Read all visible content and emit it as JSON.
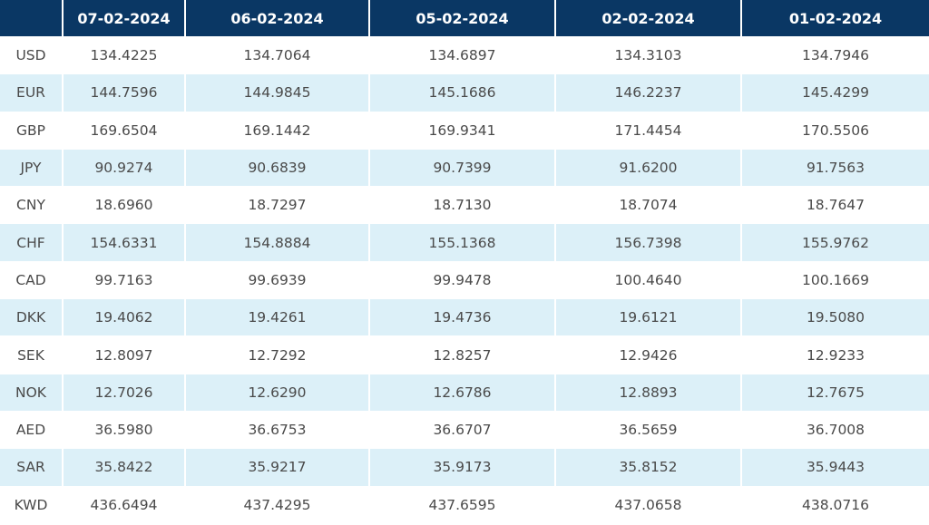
{
  "table": {
    "headers": [
      "",
      "07-02-2024",
      "06-02-2024",
      "05-02-2024",
      "02-02-2024",
      "01-02-2024"
    ],
    "rows": [
      {
        "currency": "USD",
        "values": [
          "134.4225",
          "134.7064",
          "134.6897",
          "134.3103",
          "134.7946"
        ]
      },
      {
        "currency": "EUR",
        "values": [
          "144.7596",
          "144.9845",
          "145.1686",
          "146.2237",
          "145.4299"
        ]
      },
      {
        "currency": "GBP",
        "values": [
          "169.6504",
          "169.1442",
          "169.9341",
          "171.4454",
          "170.5506"
        ]
      },
      {
        "currency": "JPY",
        "values": [
          "90.9274",
          "90.6839",
          "90.7399",
          "91.6200",
          "91.7563"
        ]
      },
      {
        "currency": "CNY",
        "values": [
          "18.6960",
          "18.7297",
          "18.7130",
          "18.7074",
          "18.7647"
        ]
      },
      {
        "currency": "CHF",
        "values": [
          "154.6331",
          "154.8884",
          "155.1368",
          "156.7398",
          "155.9762"
        ]
      },
      {
        "currency": "CAD",
        "values": [
          "99.7163",
          "99.6939",
          "99.9478",
          "100.4640",
          "100.1669"
        ]
      },
      {
        "currency": "DKK",
        "values": [
          "19.4062",
          "19.4261",
          "19.4736",
          "19.6121",
          "19.5080"
        ]
      },
      {
        "currency": "SEK",
        "values": [
          "12.8097",
          "12.7292",
          "12.8257",
          "12.9426",
          "12.9233"
        ]
      },
      {
        "currency": "NOK",
        "values": [
          "12.7026",
          "12.6290",
          "12.6786",
          "12.8893",
          "12.7675"
        ]
      },
      {
        "currency": "AED",
        "values": [
          "36.5980",
          "36.6753",
          "36.6707",
          "36.5659",
          "36.7008"
        ]
      },
      {
        "currency": "SAR",
        "values": [
          "35.8422",
          "35.9217",
          "35.9173",
          "35.8152",
          "35.9443"
        ]
      },
      {
        "currency": "KWD",
        "values": [
          "436.6494",
          "437.4295",
          "437.6595",
          "437.0658",
          "438.0716"
        ]
      }
    ]
  },
  "colors": {
    "header_bg": "#0a3764",
    "alt_row_bg": "#dcf0f8",
    "text": "#4a4a4a"
  }
}
